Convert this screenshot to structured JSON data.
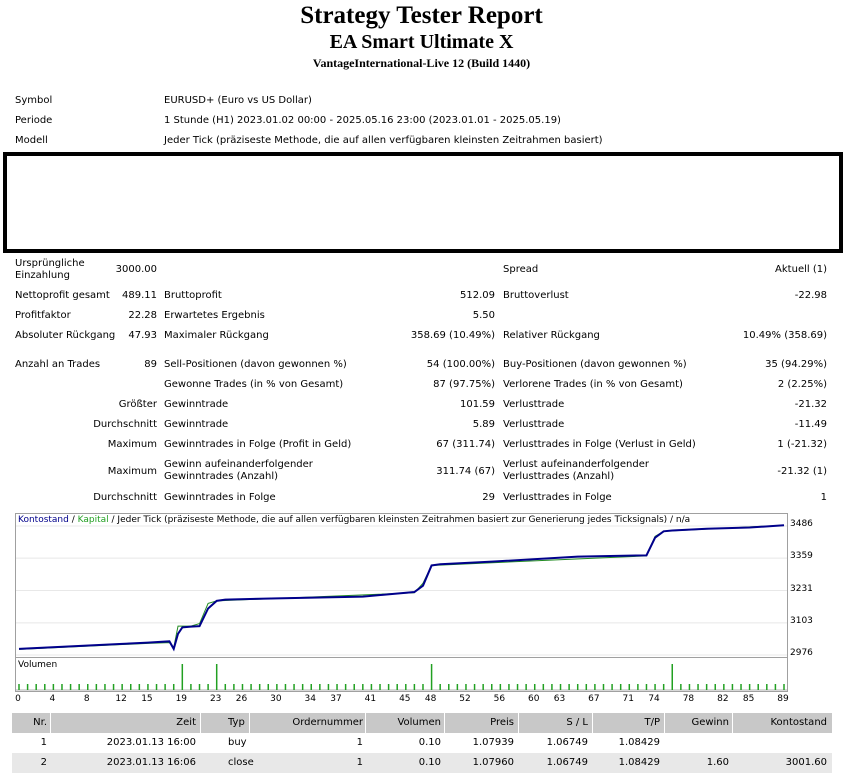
{
  "header": {
    "title": "Strategy Tester Report",
    "subtitle": "EA Smart Ultimate X",
    "server": "VantageInternational-Live 12 (Build 1440)"
  },
  "info": {
    "symbol_label": "Symbol",
    "symbol_value": "EURUSD+ (Euro vs US Dollar)",
    "period_label": "Periode",
    "period_value": "1 Stunde (H1) 2023.01.02 00:00 - 2025.05.16 23:00 (2023.01.01 - 2025.05.19)",
    "model_label": "Modell",
    "model_value": "Jeder Tick (präziseste Methode, die auf allen verfügbaren kleinsten Zeitrahmen basiert)"
  },
  "stats": {
    "initial_deposit_label": "Ursprüngliche Einzahlung",
    "initial_deposit": "3000.00",
    "spread_label": "Spread",
    "spread": "Aktuell (1)",
    "net_profit_label": "Nettoprofit gesamt",
    "net_profit": "489.11",
    "gross_profit_label": "Bruttoprofit",
    "gross_profit": "512.09",
    "gross_loss_label": "Bruttoverlust",
    "gross_loss": "-22.98",
    "profit_factor_label": "Profitfaktor",
    "profit_factor": "22.28",
    "expected_payoff_label": "Erwartetes Ergebnis",
    "expected_payoff": "5.50",
    "abs_dd_label": "Absoluter Rückgang",
    "abs_dd": "47.93",
    "max_dd_label": "Maximaler Rückgang",
    "max_dd": "358.69 (10.49%)",
    "rel_dd_label": "Relativer Rückgang",
    "rel_dd": "10.49% (358.69)",
    "total_trades_label": "Anzahl an Trades",
    "total_trades": "89",
    "short_label": "Sell-Positionen (davon gewonnen %)",
    "short": "54 (100.00%)",
    "long_label": "Buy-Positionen (davon gewonnen %)",
    "long": "35 (94.29%)",
    "won_label": "Gewonne Trades (in % von Gesamt)",
    "won": "87 (97.75%)",
    "lost_label": "Verlorene Trades (in % von Gesamt)",
    "lost": "2 (2.25%)",
    "largest_label": "Größter",
    "largest_win_label": "Gewinntrade",
    "largest_win": "101.59",
    "largest_loss_label": "Verlusttrade",
    "largest_loss": "-21.32",
    "average_label": "Durchschnitt",
    "avg_win_label": "Gewinntrade",
    "avg_win": "5.89",
    "avg_loss_label": "Verlusttrade",
    "avg_loss": "-11.49",
    "maximum_label": "Maximum",
    "max_consec_wins_label": "Gewinntrades in Folge (Profit in Geld)",
    "max_consec_wins": "67 (311.74)",
    "max_consec_losses_label": "Verlusttrades in Folge (Verlust in Geld)",
    "max_consec_losses": "1 (-21.32)",
    "maximum2_label": "Maximum",
    "max_consec_profit_label": "Gewinn aufeinanderfolgender Gewinntrades (Anzahl)",
    "max_consec_profit": "311.74 (67)",
    "max_consec_loss_label": "Verlust aufeinanderfolgender Verlusttrades (Anzahl)",
    "max_consec_loss": "-21.32 (1)",
    "average2_label": "Durchschnitt",
    "avg_consec_wins_label": "Gewinntrades in Folge",
    "avg_consec_wins": "29",
    "avg_consec_losses_label": "Verlusttrades in Folge",
    "avg_consec_losses": "1"
  },
  "chart": {
    "caption_balance": "Kontostand",
    "caption_sep1": " / ",
    "caption_equity": "Kapital",
    "caption_rest": " / Jeder Tick (präziseste Methode, die auf allen verfügbaren kleinsten Zeitrahmen basiert zur Generierung jedes Ticksignals) / n/a",
    "volume_label": "Volumen",
    "balance_color": "#00008b",
    "equity_color": "#228b22"
  },
  "chart_data": {
    "type": "line",
    "yticks": [
      "3486",
      "3359",
      "3231",
      "3103",
      "2976"
    ],
    "ylim": [
      2976,
      3486
    ],
    "xticks": [
      "0",
      "4",
      "8",
      "12",
      "15",
      "19",
      "23",
      "26",
      "30",
      "34",
      "37",
      "41",
      "45",
      "48",
      "52",
      "56",
      "60",
      "63",
      "67",
      "71",
      "74",
      "78",
      "82",
      "85",
      "89"
    ],
    "xlim": [
      0,
      89
    ],
    "series": [
      {
        "values_x": [
          0,
          3,
          6,
          9,
          12,
          15,
          17.5,
          18,
          18.5,
          19,
          20,
          21,
          22,
          23,
          24,
          30,
          40,
          46,
          47,
          48,
          49,
          55,
          65,
          73,
          74,
          75,
          76,
          80,
          85,
          89
        ],
        "values_y": [
          3000,
          3005,
          3010,
          3015,
          3020,
          3025,
          3030,
          3000,
          3060,
          3085,
          3088,
          3090,
          3160,
          3190,
          3195,
          3200,
          3207,
          3225,
          3250,
          3330,
          3335,
          3345,
          3365,
          3370,
          3440,
          3465,
          3468,
          3475,
          3480,
          3489
        ]
      },
      {
        "values_x": [
          0,
          15,
          17.5,
          18,
          18.5,
          19,
          20,
          21,
          22,
          23,
          46,
          47,
          48,
          73,
          74,
          75,
          89
        ],
        "values_y": [
          2998,
          3022,
          3025,
          3005,
          3090,
          3090,
          3090,
          3100,
          3180,
          3190,
          3222,
          3260,
          3330,
          3368,
          3445,
          3465,
          3489
        ]
      }
    ],
    "volume_x": [
      0,
      4,
      8,
      12,
      15,
      19,
      23,
      26,
      30,
      34,
      37,
      41,
      45,
      48,
      52,
      56,
      60,
      63,
      67,
      71,
      74,
      78,
      82,
      85,
      89
    ],
    "volume_spikes": [
      19,
      23,
      48,
      76
    ]
  },
  "deals": {
    "headers": [
      "Nr.",
      "Zeit",
      "Typ",
      "Ordernummer",
      "Volumen",
      "Preis",
      "S / L",
      "T/P",
      "Gewinn",
      "Kontostand"
    ],
    "rows": [
      [
        "1",
        "2023.01.13 16:00",
        "buy",
        "1",
        "0.10",
        "1.07939",
        "1.06749",
        "1.08429",
        "",
        ""
      ],
      [
        "2",
        "2023.01.13 16:06",
        "close",
        "1",
        "0.10",
        "1.07960",
        "1.06749",
        "1.08429",
        "1.60",
        "3001.60"
      ]
    ]
  }
}
